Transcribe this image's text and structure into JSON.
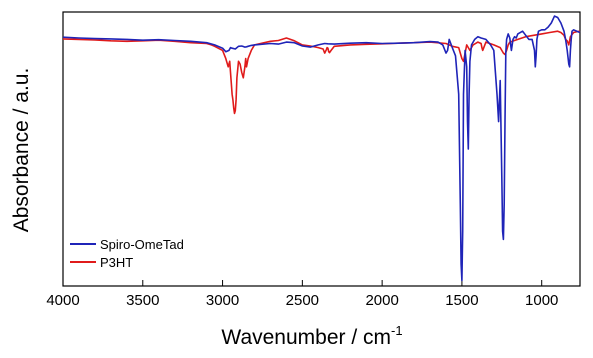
{
  "chart_data": {
    "type": "line",
    "xlabel": "Wavenumber / cm",
    "xlabel_superscript": "-1",
    "ylabel": "Absorbance / a.u.",
    "x_axis_reversed": true,
    "xlim": [
      4000,
      760
    ],
    "ylim": [
      0,
      1
    ],
    "x_ticks": [
      4000,
      3500,
      3000,
      2500,
      2000,
      1500,
      1000
    ],
    "x_tick_labels": [
      "4000",
      "3500",
      "3000",
      "2500",
      "2000",
      "1500",
      "1000"
    ],
    "y_tick_labels_shown": false,
    "grid": false,
    "legend_placement": "bottom-left",
    "series": [
      {
        "name": "Spiro-OmeTad",
        "color": "#1f24b8",
        "x": [
          4000,
          3900,
          3800,
          3700,
          3600,
          3500,
          3400,
          3300,
          3200,
          3100,
          3050,
          3000,
          2980,
          2960,
          2950,
          2940,
          2920,
          2900,
          2880,
          2870,
          2860,
          2850,
          2840,
          2820,
          2800,
          2700,
          2650,
          2600,
          2550,
          2500,
          2450,
          2400,
          2360,
          2340,
          2300,
          2200,
          2100,
          2000,
          1900,
          1800,
          1700,
          1650,
          1620,
          1600,
          1590,
          1580,
          1560,
          1540,
          1520,
          1510,
          1505,
          1500,
          1495,
          1490,
          1480,
          1470,
          1465,
          1460,
          1455,
          1450,
          1440,
          1420,
          1400,
          1380,
          1350,
          1320,
          1300,
          1290,
          1280,
          1270,
          1260,
          1250,
          1245,
          1240,
          1235,
          1230,
          1225,
          1220,
          1210,
          1200,
          1190,
          1180,
          1175,
          1170,
          1160,
          1150,
          1120,
          1100,
          1080,
          1060,
          1045,
          1040,
          1035,
          1030,
          1020,
          1000,
          980,
          960,
          940,
          920,
          900,
          880,
          860,
          850,
          840,
          830,
          825,
          820,
          815,
          810,
          800,
          780,
          760
        ],
        "y": [
          0.908,
          0.905,
          0.903,
          0.902,
          0.9,
          0.897,
          0.899,
          0.896,
          0.893,
          0.888,
          0.88,
          0.868,
          0.855,
          0.86,
          0.87,
          0.868,
          0.865,
          0.875,
          0.876,
          0.874,
          0.872,
          0.873,
          0.875,
          0.878,
          0.88,
          0.885,
          0.883,
          0.89,
          0.888,
          0.876,
          0.872,
          0.88,
          0.885,
          0.884,
          0.883,
          0.886,
          0.888,
          0.885,
          0.886,
          0.888,
          0.892,
          0.89,
          0.88,
          0.85,
          0.86,
          0.9,
          0.87,
          0.84,
          0.7,
          0.3,
          0.08,
          0.02,
          0.2,
          0.7,
          0.86,
          0.8,
          0.6,
          0.5,
          0.7,
          0.82,
          0.88,
          0.9,
          0.91,
          0.905,
          0.9,
          0.88,
          0.86,
          0.78,
          0.7,
          0.6,
          0.75,
          0.4,
          0.2,
          0.17,
          0.3,
          0.6,
          0.85,
          0.9,
          0.92,
          0.905,
          0.86,
          0.9,
          0.905,
          0.91,
          0.905,
          0.92,
          0.93,
          0.915,
          0.9,
          0.9,
          0.86,
          0.8,
          0.84,
          0.9,
          0.93,
          0.935,
          0.935,
          0.945,
          0.96,
          0.985,
          0.98,
          0.96,
          0.93,
          0.9,
          0.86,
          0.81,
          0.8,
          0.86,
          0.9,
          0.93,
          0.935,
          0.93,
          0.925
        ]
      },
      {
        "name": "P3HT",
        "color": "#e01b1b",
        "x": [
          4000,
          3900,
          3800,
          3700,
          3600,
          3500,
          3400,
          3300,
          3200,
          3100,
          3070,
          3050,
          3000,
          2980,
          2965,
          2955,
          2950,
          2945,
          2940,
          2935,
          2930,
          2925,
          2920,
          2915,
          2910,
          2900,
          2890,
          2880,
          2870,
          2860,
          2855,
          2850,
          2840,
          2820,
          2800,
          2700,
          2650,
          2600,
          2550,
          2500,
          2450,
          2400,
          2370,
          2360,
          2350,
          2345,
          2340,
          2335,
          2330,
          2320,
          2300,
          2200,
          2100,
          2000,
          1900,
          1800,
          1700,
          1600,
          1560,
          1520,
          1510,
          1500,
          1490,
          1480,
          1470,
          1460,
          1450,
          1440,
          1430,
          1400,
          1380,
          1375,
          1370,
          1360,
          1350,
          1300,
          1260,
          1250,
          1240,
          1230,
          1220,
          1210,
          1200,
          1150,
          1100,
          1050,
          1000,
          950,
          900,
          880,
          860,
          850,
          840,
          830,
          820,
          800,
          780,
          760
        ],
        "y": [
          0.902,
          0.9,
          0.898,
          0.895,
          0.893,
          0.895,
          0.897,
          0.893,
          0.888,
          0.885,
          0.88,
          0.875,
          0.86,
          0.83,
          0.8,
          0.82,
          0.78,
          0.74,
          0.7,
          0.68,
          0.65,
          0.63,
          0.64,
          0.68,
          0.76,
          0.82,
          0.81,
          0.78,
          0.76,
          0.8,
          0.83,
          0.8,
          0.83,
          0.86,
          0.88,
          0.893,
          0.896,
          0.905,
          0.895,
          0.88,
          0.876,
          0.87,
          0.865,
          0.85,
          0.862,
          0.87,
          0.868,
          0.855,
          0.852,
          0.86,
          0.875,
          0.88,
          0.882,
          0.884,
          0.886,
          0.888,
          0.89,
          0.885,
          0.875,
          0.87,
          0.85,
          0.83,
          0.82,
          0.85,
          0.88,
          0.87,
          0.86,
          0.87,
          0.88,
          0.89,
          0.885,
          0.87,
          0.86,
          0.875,
          0.89,
          0.88,
          0.87,
          0.86,
          0.85,
          0.845,
          0.86,
          0.88,
          0.89,
          0.9,
          0.91,
          0.915,
          0.92,
          0.925,
          0.93,
          0.925,
          0.915,
          0.9,
          0.895,
          0.88,
          0.91,
          0.925,
          0.928,
          0.93
        ]
      }
    ]
  }
}
